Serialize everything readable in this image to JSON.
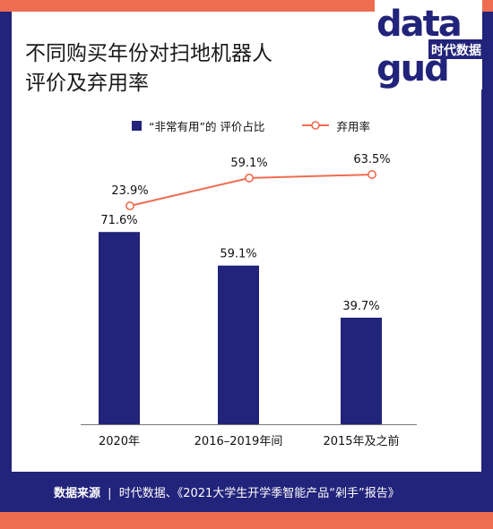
{
  "title_line1": "不同购买年份对扫地机器人",
  "title_line2": "评价及弃用率",
  "logo": {
    "text_top": "data",
    "text_bottom": "gud",
    "brand": "时代数据"
  },
  "legend": {
    "bar_label": "“非常有用”的 评价占比",
    "line_label": "弃用率"
  },
  "footer": {
    "source_label": "数据来源",
    "separator": "|",
    "source_text": "时代数据、《2021大学生开学季智能产品“剁手”报告》"
  },
  "colors": {
    "navy": "#22237a",
    "orange": "#ee6c50"
  },
  "chart_data": {
    "type": "bar",
    "categories": [
      "2020年",
      "2016–2019年间",
      "2015年及之前"
    ],
    "series": [
      {
        "name": "“非常有用”的 评价占比",
        "type": "bar",
        "values": [
          71.6,
          59.1,
          39.7
        ],
        "labels": [
          "71.6%",
          "59.1%",
          "39.7%"
        ]
      },
      {
        "name": "弃用率",
        "type": "line",
        "values": [
          23.9,
          59.1,
          63.5
        ],
        "labels": [
          "23.9%",
          "59.1%",
          "63.5%"
        ]
      }
    ]
  }
}
